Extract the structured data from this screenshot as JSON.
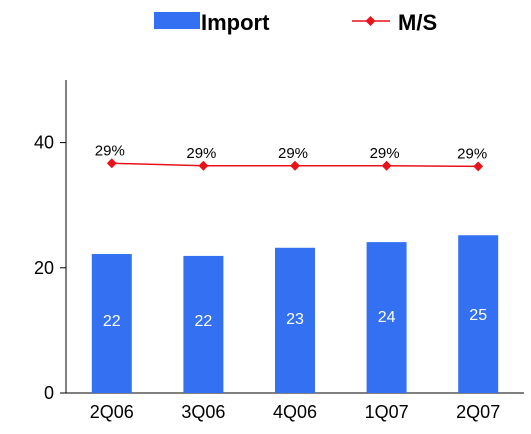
{
  "chart_data": {
    "type": "bar",
    "title": "",
    "xlabel": "",
    "ylabel": "",
    "categories": [
      "2Q06",
      "3Q06",
      "4Q06",
      "1Q07",
      "2Q07"
    ],
    "ylim": [
      0,
      50
    ],
    "yticks": [
      0,
      20,
      40
    ],
    "grid": false,
    "legend_position": "top",
    "series": [
      {
        "name": "Import",
        "type": "bar",
        "color": "#3371F2",
        "values": [
          22.2,
          21.9,
          23.2,
          24.1,
          25.2
        ],
        "labels": [
          "22",
          "22",
          "23",
          "24",
          "25"
        ]
      },
      {
        "name": "M/S",
        "type": "line",
        "color": "#E8131A",
        "values": [
          36.7,
          36.3,
          36.3,
          36.3,
          36.2
        ],
        "labels": [
          "29%",
          "29%",
          "29%",
          "29%",
          "29%"
        ]
      }
    ]
  }
}
